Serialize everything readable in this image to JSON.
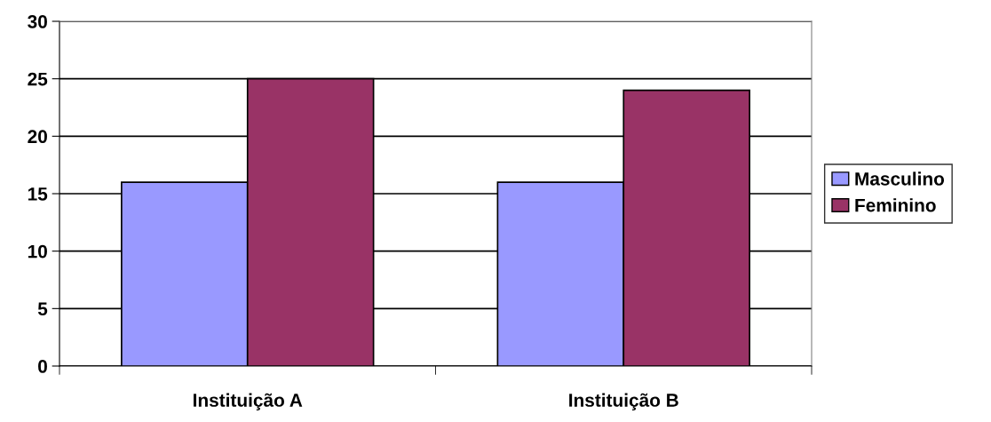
{
  "chart_data": {
    "type": "bar",
    "categories": [
      "Instituição A",
      "Instituição B"
    ],
    "series": [
      {
        "name": "Masculino",
        "color": "#9999ff",
        "values": [
          16,
          16
        ]
      },
      {
        "name": "Feminino",
        "color": "#993366",
        "values": [
          25,
          24
        ]
      }
    ],
    "ylim": [
      0,
      30
    ],
    "yticks": [
      0,
      5,
      10,
      15,
      20,
      25,
      30
    ],
    "grid": "y",
    "legend": "right"
  }
}
